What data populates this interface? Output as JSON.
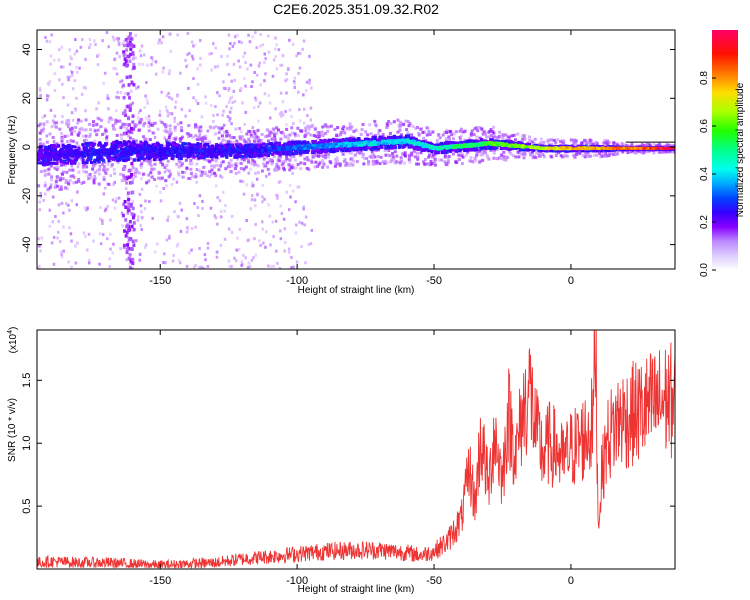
{
  "chart_data": [
    {
      "type": "heatmap",
      "title": "C2E6.2025.351.09.32.R02",
      "xlabel": "Height of straight line (km)",
      "ylabel": "Frequency (Hz)",
      "xlim": [
        -195,
        38
      ],
      "ylim": [
        -50,
        48
      ],
      "xticks": [
        -150,
        -100,
        -50,
        0
      ],
      "yticks": [
        40,
        20,
        0,
        -20,
        -40
      ],
      "grid": false,
      "colorbar": {
        "label": "Normalized spectral amplitude",
        "range": [
          0,
          1
        ],
        "ticks": [
          "0.0",
          "0.2",
          "0.4",
          "0.6",
          "0.8"
        ],
        "colors": [
          "#ffffff",
          "#cc99ff",
          "#9900ff",
          "#3300ff",
          "#0066ff",
          "#00ccff",
          "#00ffcc",
          "#00ff66",
          "#66ff00",
          "#ccff00",
          "#ffcc00",
          "#ff6600",
          "#ff0000",
          "#ff0066"
        ]
      },
      "ridge": {
        "x": [
          -195,
          -180,
          -165,
          -150,
          -135,
          -120,
          -105,
          -90,
          -75,
          -60,
          -50,
          -40,
          -30,
          -20,
          -10,
          0,
          10,
          20,
          30,
          38
        ],
        "y": [
          -3,
          -2,
          -1,
          -1,
          -1,
          -1,
          0,
          1,
          2,
          3,
          0,
          1,
          2,
          1,
          0,
          0,
          0,
          0,
          0,
          0
        ],
        "amplitude": [
          0.25,
          0.3,
          0.3,
          0.3,
          0.3,
          0.3,
          0.35,
          0.4,
          0.45,
          0.45,
          0.5,
          0.55,
          0.6,
          0.65,
          0.75,
          0.8,
          0.85,
          0.9,
          0.95,
          1.0
        ],
        "spread": [
          8,
          8,
          8,
          7,
          6,
          5,
          5,
          5,
          5,
          5,
          4,
          4,
          4,
          3,
          2,
          2,
          2,
          1,
          1,
          1
        ]
      }
    },
    {
      "type": "line",
      "xlabel": "Height of straight line (km)",
      "ylabel": "SNR (10 * v/v)",
      "yscale_label": "(x10",
      "yscale_exp": "4",
      "xlim": [
        -195,
        38
      ],
      "ylim": [
        0,
        1.9
      ],
      "xticks": [
        -150,
        -100,
        -50,
        0
      ],
      "yticks": [
        1.5,
        1.0,
        0.5
      ],
      "ytick_labels": [
        "1.5",
        "1.0",
        "0.5"
      ],
      "color": "#ee3333",
      "series": [
        {
          "x": [
            -195,
            -190,
            -180,
            -170,
            -160,
            -150,
            -140,
            -130,
            -120,
            -110,
            -100,
            -90,
            -80,
            -70,
            -60,
            -55,
            -50,
            -45,
            -40,
            -37,
            -35,
            -33,
            -30,
            -28,
            -25,
            -23,
            -20,
            -18,
            -15,
            -13,
            -10,
            -8,
            -5,
            -3,
            0,
            3,
            5,
            8,
            9,
            10,
            11,
            13,
            15,
            18,
            20,
            25,
            30,
            35,
            38
          ],
          "y": [
            0.05,
            0.06,
            0.05,
            0.05,
            0.04,
            0.03,
            0.04,
            0.05,
            0.08,
            0.1,
            0.12,
            0.14,
            0.15,
            0.15,
            0.13,
            0.11,
            0.14,
            0.22,
            0.4,
            0.8,
            0.5,
            1.05,
            0.65,
            1.1,
            0.7,
            1.25,
            0.9,
            1.2,
            1.45,
            1.1,
            0.9,
            1.0,
            0.95,
            0.85,
            0.95,
            1.0,
            1.05,
            1.15,
            1.9,
            0.3,
            0.7,
            1.0,
            1.1,
            1.2,
            1.2,
            1.25,
            1.3,
            1.35,
            1.33
          ]
        }
      ]
    }
  ]
}
